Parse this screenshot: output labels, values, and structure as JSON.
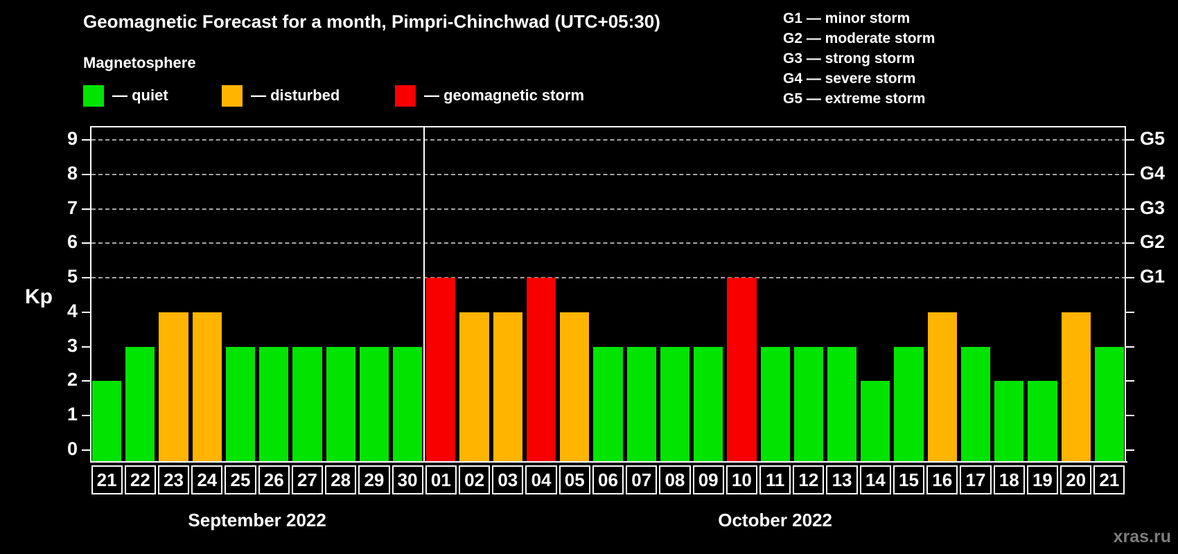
{
  "header": {
    "title": "Geomagnetic Forecast for a month, Pimpri-Chinchwad (UTC+05:30)",
    "subtitle": "Magnetosphere"
  },
  "legend": {
    "items": [
      {
        "key": "quiet",
        "label": "— quiet",
        "color": "#00e400"
      },
      {
        "key": "disturbed",
        "label": "— disturbed",
        "color": "#ffb400"
      },
      {
        "key": "storm",
        "label": "— geomagnetic storm",
        "color": "#f80000"
      }
    ]
  },
  "g_legend": {
    "items": [
      {
        "label": "G1 — minor storm"
      },
      {
        "label": "G2 — moderate storm"
      },
      {
        "label": "G3 — strong storm"
      },
      {
        "label": "G4 — severe storm"
      },
      {
        "label": "G5 — extreme storm"
      }
    ]
  },
  "watermark": "xras.ru",
  "chart_data": {
    "type": "bar",
    "title": "Geomagnetic Forecast for a month, Pimpri-Chinchwad (UTC+05:30)",
    "ylabel": "Kp",
    "ylim": [
      0,
      9
    ],
    "yticks": [
      0,
      1,
      2,
      3,
      4,
      5,
      6,
      7,
      8,
      9
    ],
    "grid_on": true,
    "grid_levels": [
      5,
      6,
      7,
      8,
      9
    ],
    "right_axis_labels": [
      {
        "text": "G1",
        "kp": 5
      },
      {
        "text": "G2",
        "kp": 6
      },
      {
        "text": "G3",
        "kp": 7
      },
      {
        "text": "G4",
        "kp": 8
      },
      {
        "text": "G5",
        "kp": 9
      }
    ],
    "status_colors": {
      "quiet": "#00e400",
      "disturbed": "#ffb400",
      "storm": "#f80000"
    },
    "months": [
      {
        "label": "September 2022",
        "days": [
          {
            "date": "21",
            "kp": 2,
            "status": "quiet"
          },
          {
            "date": "22",
            "kp": 3,
            "status": "quiet"
          },
          {
            "date": "23",
            "kp": 4,
            "status": "disturbed"
          },
          {
            "date": "24",
            "kp": 4,
            "status": "disturbed"
          },
          {
            "date": "25",
            "kp": 3,
            "status": "quiet"
          },
          {
            "date": "26",
            "kp": 3,
            "status": "quiet"
          },
          {
            "date": "27",
            "kp": 3,
            "status": "quiet"
          },
          {
            "date": "28",
            "kp": 3,
            "status": "quiet"
          },
          {
            "date": "29",
            "kp": 3,
            "status": "quiet"
          },
          {
            "date": "30",
            "kp": 3,
            "status": "quiet"
          }
        ]
      },
      {
        "label": "October 2022",
        "days": [
          {
            "date": "01",
            "kp": 5,
            "status": "storm"
          },
          {
            "date": "02",
            "kp": 4,
            "status": "disturbed"
          },
          {
            "date": "03",
            "kp": 4,
            "status": "disturbed"
          },
          {
            "date": "04",
            "kp": 5,
            "status": "storm"
          },
          {
            "date": "05",
            "kp": 4,
            "status": "disturbed"
          },
          {
            "date": "06",
            "kp": 3,
            "status": "quiet"
          },
          {
            "date": "07",
            "kp": 3,
            "status": "quiet"
          },
          {
            "date": "08",
            "kp": 3,
            "status": "quiet"
          },
          {
            "date": "09",
            "kp": 3,
            "status": "quiet"
          },
          {
            "date": "10",
            "kp": 5,
            "status": "storm"
          },
          {
            "date": "11",
            "kp": 3,
            "status": "quiet"
          },
          {
            "date": "12",
            "kp": 3,
            "status": "quiet"
          },
          {
            "date": "13",
            "kp": 3,
            "status": "quiet"
          },
          {
            "date": "14",
            "kp": 2,
            "status": "quiet"
          },
          {
            "date": "15",
            "kp": 3,
            "status": "quiet"
          },
          {
            "date": "16",
            "kp": 4,
            "status": "disturbed"
          },
          {
            "date": "17",
            "kp": 3,
            "status": "quiet"
          },
          {
            "date": "18",
            "kp": 2,
            "status": "quiet"
          },
          {
            "date": "19",
            "kp": 2,
            "status": "quiet"
          },
          {
            "date": "20",
            "kp": 4,
            "status": "disturbed"
          },
          {
            "date": "21",
            "kp": 3,
            "status": "quiet"
          }
        ]
      }
    ]
  }
}
